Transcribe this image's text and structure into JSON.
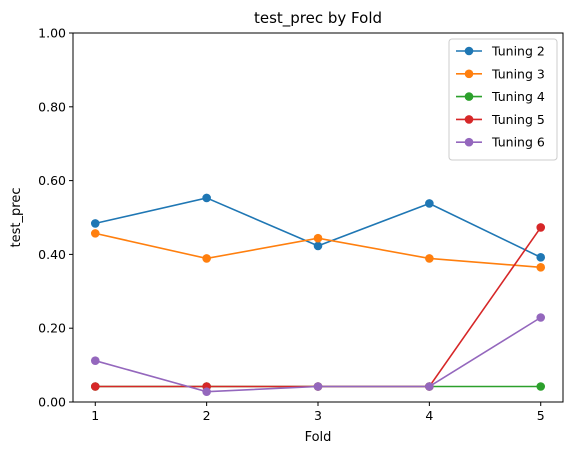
{
  "chart_data": {
    "type": "line",
    "title": "test_prec by Fold",
    "xlabel": "Fold",
    "ylabel": "test_prec",
    "x": [
      1,
      2,
      3,
      4,
      5
    ],
    "x_tick_labels": [
      "1",
      "2",
      "3",
      "4",
      "5"
    ],
    "ylim": [
      0,
      1
    ],
    "y_tick_labels": [
      "0.00",
      "0.20",
      "0.40",
      "0.60",
      "0.80",
      "1.00"
    ],
    "grid": false,
    "legend_position": "top-right",
    "series": [
      {
        "name": "Tuning 2",
        "color": "#1f77b4",
        "values": [
          0.484,
          0.553,
          0.423,
          0.538,
          0.392
        ]
      },
      {
        "name": "Tuning 3",
        "color": "#ff7f0e",
        "values": [
          0.457,
          0.389,
          0.444,
          0.389,
          0.365
        ]
      },
      {
        "name": "Tuning 4",
        "color": "#2ca02c",
        "values": [
          0.042,
          0.042,
          0.042,
          0.042,
          0.042
        ]
      },
      {
        "name": "Tuning 5",
        "color": "#d62728",
        "values": [
          0.042,
          0.042,
          0.042,
          0.042,
          0.473
        ]
      },
      {
        "name": "Tuning 6",
        "color": "#9467bd",
        "values": [
          0.112,
          0.028,
          0.042,
          0.042,
          0.229
        ]
      }
    ]
  }
}
